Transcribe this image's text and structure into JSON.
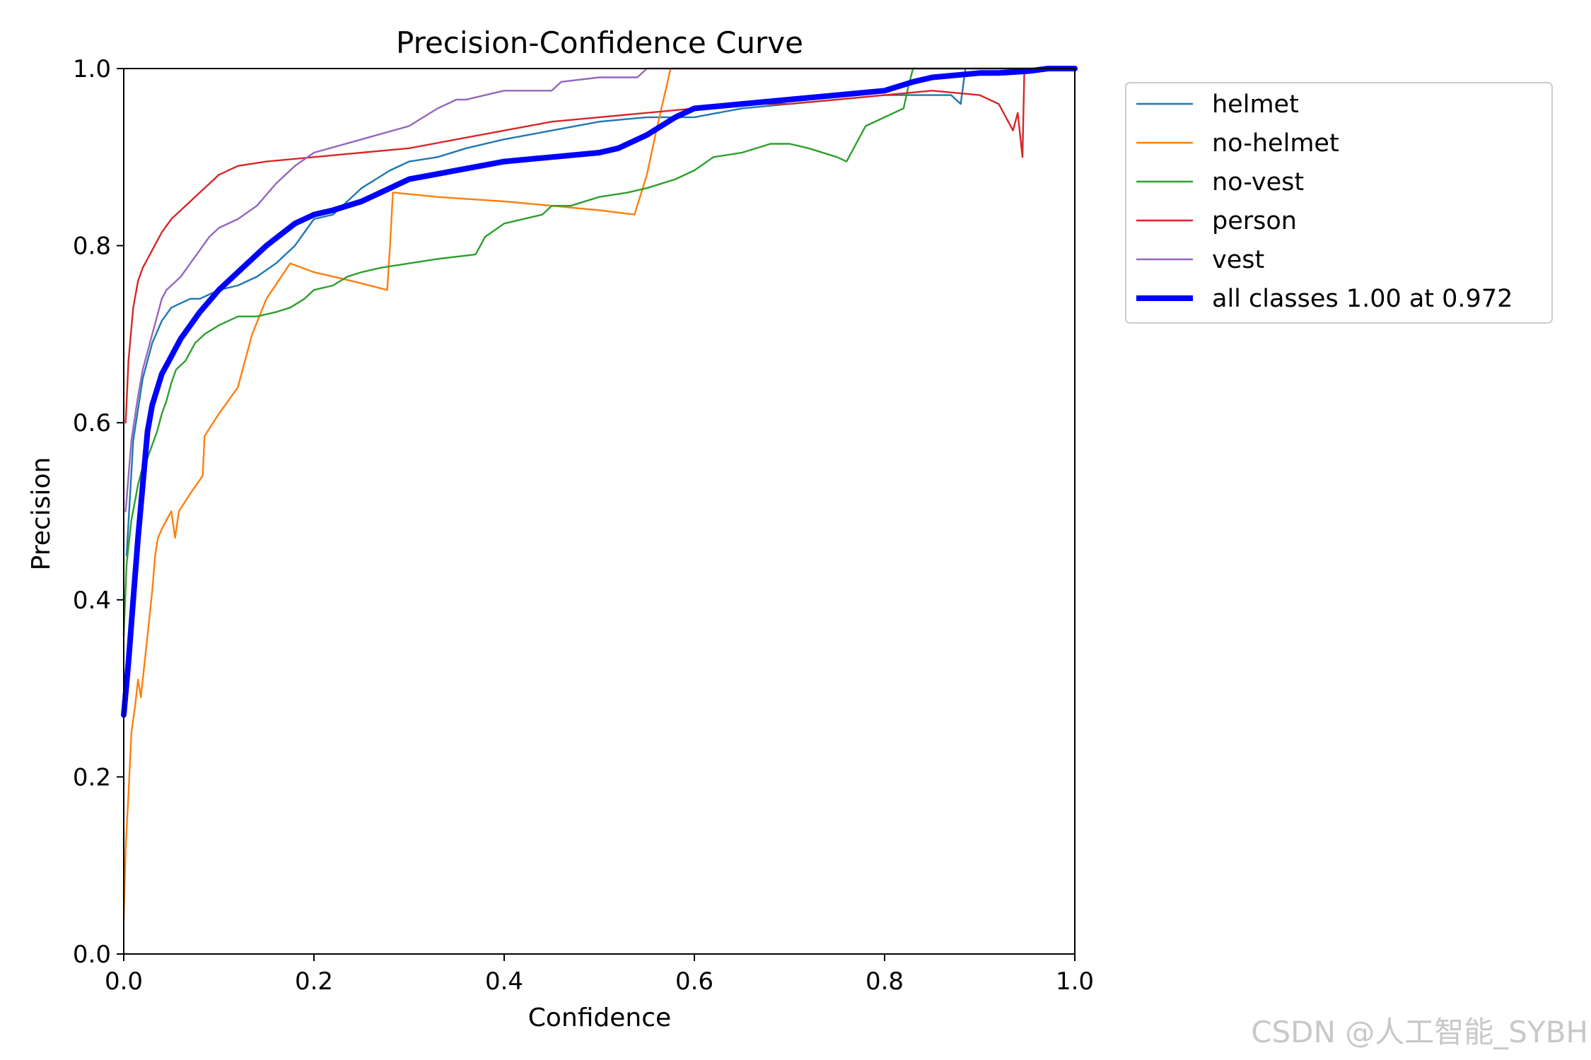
{
  "chart_data": {
    "type": "line",
    "title": "Precision-Confidence Curve",
    "xlabel": "Confidence",
    "ylabel": "Precision",
    "xlim": [
      0,
      1
    ],
    "ylim": [
      0,
      1
    ],
    "xticks": [
      "0.0",
      "0.2",
      "0.4",
      "0.6",
      "0.8",
      "1.0"
    ],
    "yticks": [
      "0.0",
      "0.2",
      "0.4",
      "0.6",
      "0.8",
      "1.0"
    ],
    "grid": false,
    "legend_position": "outside-right",
    "series": [
      {
        "name": "helmet",
        "color": "#1f77b4",
        "width": "thin",
        "x": [
          0.003,
          0.01,
          0.02,
          0.03,
          0.04,
          0.05,
          0.06,
          0.07,
          0.08,
          0.1,
          0.12,
          0.14,
          0.16,
          0.18,
          0.2,
          0.22,
          0.25,
          0.28,
          0.3,
          0.33,
          0.36,
          0.4,
          0.45,
          0.5,
          0.55,
          0.6,
          0.65,
          0.7,
          0.75,
          0.8,
          0.85,
          0.87,
          0.88,
          0.885,
          0.9,
          0.95,
          1.0
        ],
        "y": [
          0.45,
          0.58,
          0.65,
          0.69,
          0.715,
          0.73,
          0.735,
          0.74,
          0.74,
          0.75,
          0.755,
          0.765,
          0.78,
          0.8,
          0.83,
          0.835,
          0.865,
          0.885,
          0.895,
          0.9,
          0.91,
          0.92,
          0.93,
          0.94,
          0.945,
          0.945,
          0.955,
          0.96,
          0.965,
          0.97,
          0.97,
          0.97,
          0.96,
          1.0,
          1.0,
          1.0,
          1.0
        ]
      },
      {
        "name": "no-helmet",
        "color": "#ff7f0e",
        "width": "thin",
        "x": [
          0.0,
          0.002,
          0.005,
          0.008,
          0.012,
          0.015,
          0.018,
          0.022,
          0.026,
          0.03,
          0.033,
          0.036,
          0.04,
          0.045,
          0.05,
          0.054,
          0.058,
          0.07,
          0.083,
          0.085,
          0.1,
          0.12,
          0.135,
          0.15,
          0.175,
          0.2,
          0.24,
          0.277,
          0.28,
          0.283,
          0.33,
          0.4,
          0.45,
          0.5,
          0.537,
          0.55,
          0.56,
          0.575,
          0.6,
          1.0
        ],
        "y": [
          0.04,
          0.12,
          0.18,
          0.25,
          0.28,
          0.31,
          0.29,
          0.33,
          0.37,
          0.41,
          0.45,
          0.47,
          0.48,
          0.49,
          0.5,
          0.47,
          0.5,
          0.52,
          0.54,
          0.585,
          0.61,
          0.64,
          0.7,
          0.74,
          0.78,
          0.77,
          0.76,
          0.75,
          0.8,
          0.86,
          0.855,
          0.85,
          0.845,
          0.84,
          0.835,
          0.88,
          0.93,
          1.0,
          1.0,
          1.0
        ]
      },
      {
        "name": "no-vest",
        "color": "#2ca02c",
        "width": "thin",
        "x": [
          0.0,
          0.003,
          0.008,
          0.015,
          0.02,
          0.025,
          0.03,
          0.035,
          0.04,
          0.045,
          0.05,
          0.055,
          0.065,
          0.075,
          0.085,
          0.1,
          0.12,
          0.14,
          0.16,
          0.175,
          0.19,
          0.2,
          0.22,
          0.235,
          0.25,
          0.27,
          0.3,
          0.33,
          0.37,
          0.38,
          0.4,
          0.44,
          0.45,
          0.47,
          0.5,
          0.53,
          0.55,
          0.58,
          0.6,
          0.62,
          0.65,
          0.68,
          0.7,
          0.72,
          0.75,
          0.76,
          0.78,
          0.8,
          0.82,
          0.825,
          0.83,
          1.0
        ],
        "y": [
          0.36,
          0.44,
          0.49,
          0.53,
          0.55,
          0.56,
          0.575,
          0.59,
          0.61,
          0.625,
          0.645,
          0.66,
          0.67,
          0.69,
          0.7,
          0.71,
          0.72,
          0.72,
          0.725,
          0.73,
          0.74,
          0.75,
          0.755,
          0.765,
          0.77,
          0.775,
          0.78,
          0.785,
          0.79,
          0.81,
          0.825,
          0.835,
          0.845,
          0.845,
          0.855,
          0.86,
          0.865,
          0.875,
          0.885,
          0.9,
          0.905,
          0.915,
          0.915,
          0.91,
          0.9,
          0.895,
          0.935,
          0.945,
          0.955,
          0.98,
          1.0,
          1.0
        ]
      },
      {
        "name": "person",
        "color": "#d62728",
        "width": "thin",
        "x": [
          0.002,
          0.005,
          0.01,
          0.015,
          0.02,
          0.025,
          0.03,
          0.035,
          0.04,
          0.05,
          0.06,
          0.07,
          0.08,
          0.09,
          0.1,
          0.12,
          0.15,
          0.2,
          0.25,
          0.3,
          0.35,
          0.4,
          0.45,
          0.5,
          0.55,
          0.6,
          0.65,
          0.7,
          0.75,
          0.8,
          0.85,
          0.9,
          0.92,
          0.93,
          0.935,
          0.94,
          0.945,
          0.947,
          0.95,
          0.97,
          1.0
        ],
        "y": [
          0.6,
          0.67,
          0.73,
          0.76,
          0.775,
          0.785,
          0.795,
          0.805,
          0.815,
          0.83,
          0.84,
          0.85,
          0.86,
          0.87,
          0.88,
          0.89,
          0.895,
          0.9,
          0.905,
          0.91,
          0.92,
          0.93,
          0.94,
          0.945,
          0.95,
          0.955,
          0.96,
          0.96,
          0.965,
          0.97,
          0.975,
          0.97,
          0.96,
          0.94,
          0.93,
          0.95,
          0.9,
          1.0,
          1.0,
          1.0,
          1.0
        ]
      },
      {
        "name": "vest",
        "color": "#9467bd",
        "width": "thin",
        "x": [
          0.002,
          0.008,
          0.015,
          0.02,
          0.025,
          0.03,
          0.035,
          0.04,
          0.045,
          0.05,
          0.06,
          0.07,
          0.08,
          0.09,
          0.1,
          0.12,
          0.14,
          0.16,
          0.18,
          0.2,
          0.25,
          0.3,
          0.33,
          0.35,
          0.36,
          0.4,
          0.45,
          0.46,
          0.5,
          0.54,
          0.55,
          1.0
        ],
        "y": [
          0.5,
          0.58,
          0.63,
          0.66,
          0.68,
          0.7,
          0.72,
          0.74,
          0.75,
          0.755,
          0.765,
          0.78,
          0.795,
          0.81,
          0.82,
          0.83,
          0.845,
          0.87,
          0.89,
          0.905,
          0.92,
          0.935,
          0.955,
          0.965,
          0.965,
          0.975,
          0.975,
          0.985,
          0.99,
          0.99,
          1.0,
          1.0
        ]
      },
      {
        "name": "all classes 1.00 at 0.972",
        "color": "#0000ff",
        "width": "thick",
        "x": [
          0.0,
          0.005,
          0.01,
          0.015,
          0.02,
          0.025,
          0.03,
          0.04,
          0.05,
          0.06,
          0.08,
          0.1,
          0.12,
          0.15,
          0.18,
          0.2,
          0.22,
          0.25,
          0.28,
          0.3,
          0.35,
          0.4,
          0.45,
          0.5,
          0.52,
          0.55,
          0.58,
          0.6,
          0.65,
          0.7,
          0.75,
          0.8,
          0.83,
          0.85,
          0.9,
          0.92,
          0.95,
          0.972,
          1.0
        ],
        "y": [
          0.27,
          0.33,
          0.4,
          0.47,
          0.53,
          0.59,
          0.62,
          0.655,
          0.675,
          0.695,
          0.725,
          0.75,
          0.77,
          0.8,
          0.825,
          0.835,
          0.84,
          0.85,
          0.865,
          0.875,
          0.885,
          0.895,
          0.9,
          0.905,
          0.91,
          0.925,
          0.945,
          0.955,
          0.96,
          0.965,
          0.97,
          0.975,
          0.985,
          0.99,
          0.995,
          0.995,
          0.997,
          1.0,
          1.0
        ]
      }
    ]
  },
  "watermark": "CSDN @人工智能_SYBH"
}
